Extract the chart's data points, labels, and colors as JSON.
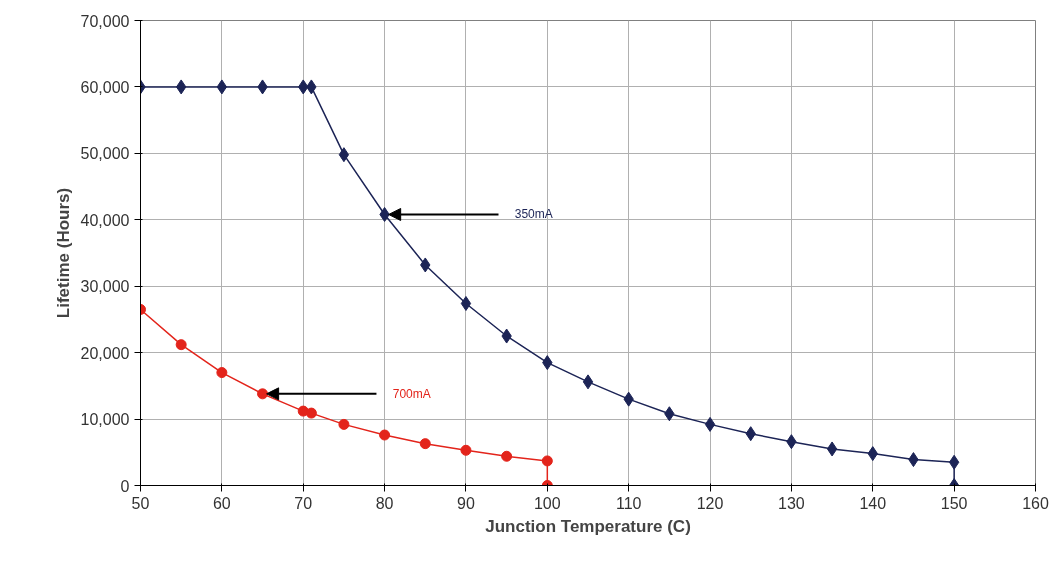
{
  "chart_data": {
    "type": "line",
    "xlabel": "Junction Temperature (C)",
    "ylabel": "Lifetime (Hours)",
    "xlim": [
      50,
      160
    ],
    "xticks": [
      50,
      60,
      70,
      80,
      90,
      100,
      110,
      120,
      130,
      140,
      150,
      160
    ],
    "ylim": [
      0,
      70000
    ],
    "yticks": [
      {
        "value": 0,
        "label": "0"
      },
      {
        "value": 10000,
        "label": "10,000"
      },
      {
        "value": 20000,
        "label": "20,000"
      },
      {
        "value": 30000,
        "label": "30,000"
      },
      {
        "value": 40000,
        "label": "40,000"
      },
      {
        "value": 50000,
        "label": "50,000"
      },
      {
        "value": 60000,
        "label": "60,000"
      },
      {
        "value": 70000,
        "label": "70,000"
      }
    ],
    "grid": true,
    "series": [
      {
        "name": "350mA",
        "color": "#1c2456",
        "marker": "diamond",
        "x": [
          50,
          55,
          60,
          65,
          70,
          71,
          75,
          80,
          85,
          90,
          95,
          100,
          105,
          110,
          115,
          120,
          125,
          130,
          135,
          140,
          145,
          150,
          150
        ],
        "values": [
          60000,
          60000,
          60000,
          60000,
          60000,
          60000,
          49800,
          40800,
          33200,
          27400,
          22500,
          18500,
          15600,
          13000,
          10800,
          9200,
          7800,
          6600,
          5500,
          4800,
          3900,
          3500,
          0
        ]
      },
      {
        "name": "700mA",
        "color": "#e3241b",
        "marker": "circle",
        "x": [
          50,
          55,
          60,
          65,
          70,
          71,
          75,
          80,
          85,
          90,
          95,
          100,
          100
        ],
        "values": [
          26500,
          21200,
          17000,
          13800,
          11200,
          10900,
          9200,
          7600,
          6300,
          5300,
          4400,
          3700,
          0
        ]
      }
    ]
  }
}
